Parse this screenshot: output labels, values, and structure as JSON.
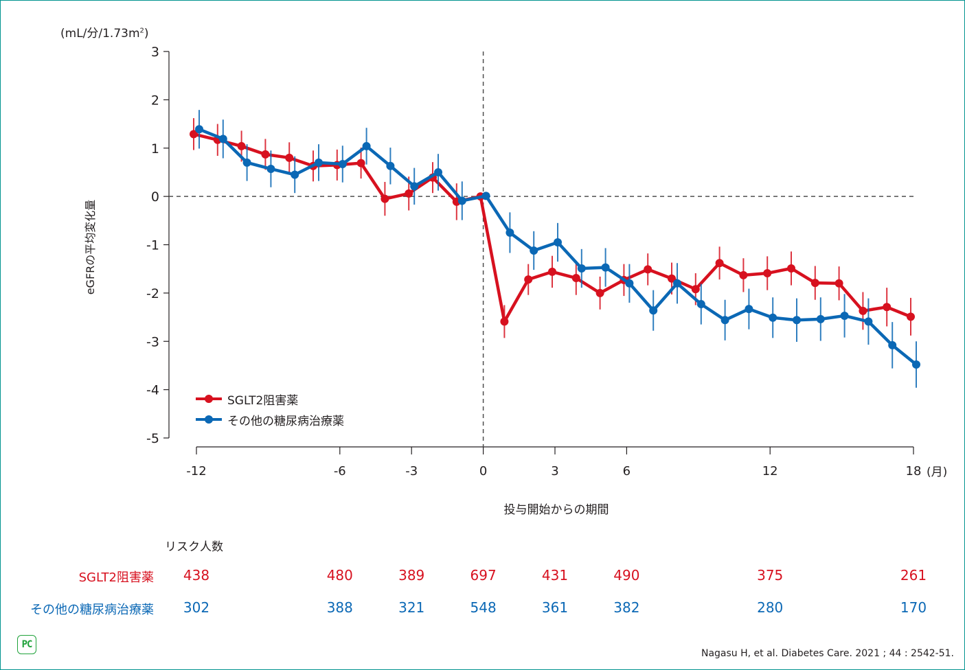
{
  "colors": {
    "sglt2": "#d7111f",
    "other": "#0b68b5",
    "axis": "#231f20",
    "frame": "#00938f",
    "logo": "#1fa23a"
  },
  "chart_data": {
    "type": "line",
    "title": "",
    "ylabel": "eGFRの平均変化量",
    "yunit": "(mL/分/1.73m²)",
    "xlabel": "投与開始からの期間",
    "xunit": "(月)",
    "xlim": [
      -12,
      18
    ],
    "ylim": [
      -5,
      3
    ],
    "xticks": [
      -12,
      -6,
      -3,
      0,
      3,
      6,
      12,
      18
    ],
    "yticks": [
      3,
      2,
      1,
      0,
      -1,
      -2,
      -3,
      -4,
      -5
    ],
    "reference_lines": {
      "x": 0,
      "y": 0,
      "style": "dashed"
    },
    "legend_position": "bottom-left",
    "series": [
      {
        "name": "SGLT2阻害薬",
        "color": "#d7111f",
        "x": [
          -12,
          -11,
          -10,
          -9,
          -8,
          -7,
          -6,
          -5,
          -4,
          -3,
          -2,
          -1,
          0,
          1,
          2,
          3,
          4,
          5,
          6,
          7,
          8,
          9,
          10,
          11,
          12,
          13,
          14,
          15,
          16,
          17,
          18
        ],
        "y": [
          1.29,
          1.17,
          1.04,
          0.87,
          0.8,
          0.63,
          0.65,
          0.69,
          -0.05,
          0.06,
          0.39,
          -0.11,
          0.0,
          -2.59,
          -1.72,
          -1.56,
          -1.69,
          -2.0,
          -1.73,
          -1.51,
          -1.7,
          -1.92,
          -1.38,
          -1.63,
          -1.59,
          -1.49,
          -1.79,
          -1.8,
          -2.37,
          -2.29,
          -2.49
        ],
        "err": [
          0.33,
          0.33,
          0.32,
          0.32,
          0.32,
          0.32,
          0.32,
          0.32,
          0.35,
          0.35,
          0.32,
          0.38,
          0.0,
          0.34,
          0.32,
          0.33,
          0.35,
          0.34,
          0.33,
          0.33,
          0.33,
          0.33,
          0.34,
          0.35,
          0.35,
          0.35,
          0.35,
          0.35,
          0.39,
          0.4,
          0.39
        ]
      },
      {
        "name": "その他の糖尿病治療薬",
        "color": "#0b68b5",
        "x": [
          -12,
          -11,
          -10,
          -9,
          -8,
          -7,
          -6,
          -5,
          -4,
          -3,
          -2,
          -1,
          0,
          1,
          2,
          3,
          4,
          5,
          6,
          7,
          8,
          9,
          10,
          11,
          12,
          13,
          14,
          15,
          16,
          17,
          18
        ],
        "y": [
          1.39,
          1.19,
          0.7,
          0.57,
          0.45,
          0.7,
          0.67,
          1.04,
          0.63,
          0.21,
          0.5,
          -0.09,
          0.01,
          -0.75,
          -1.12,
          -0.95,
          -1.49,
          -1.47,
          -1.8,
          -2.36,
          -1.8,
          -2.23,
          -2.56,
          -2.33,
          -2.51,
          -2.56,
          -2.54,
          -2.47,
          -2.59,
          -3.08,
          -3.48
        ],
        "err": [
          0.4,
          0.4,
          0.38,
          0.38,
          0.38,
          0.38,
          0.38,
          0.38,
          0.38,
          0.38,
          0.38,
          0.4,
          0.0,
          0.42,
          0.4,
          0.4,
          0.4,
          0.4,
          0.4,
          0.42,
          0.42,
          0.42,
          0.42,
          0.42,
          0.42,
          0.45,
          0.45,
          0.45,
          0.48,
          0.48,
          0.48
        ]
      }
    ]
  },
  "risk_table": {
    "title": "リスク人数",
    "months": [
      -12,
      -6,
      -3,
      0,
      3,
      6,
      12,
      18
    ],
    "rows": [
      {
        "label": "SGLT2阻害薬",
        "values": [
          "438",
          "480",
          "389",
          "697",
          "431",
          "490",
          "375",
          "261"
        ]
      },
      {
        "label": "その他の糖尿病治療薬",
        "values": [
          "302",
          "388",
          "321",
          "548",
          "361",
          "382",
          "280",
          "170"
        ]
      }
    ]
  },
  "citation": "Nagasu H, et al. Diabetes Care. 2021 ; 44 : 2542-51.",
  "logo_text": "PC"
}
